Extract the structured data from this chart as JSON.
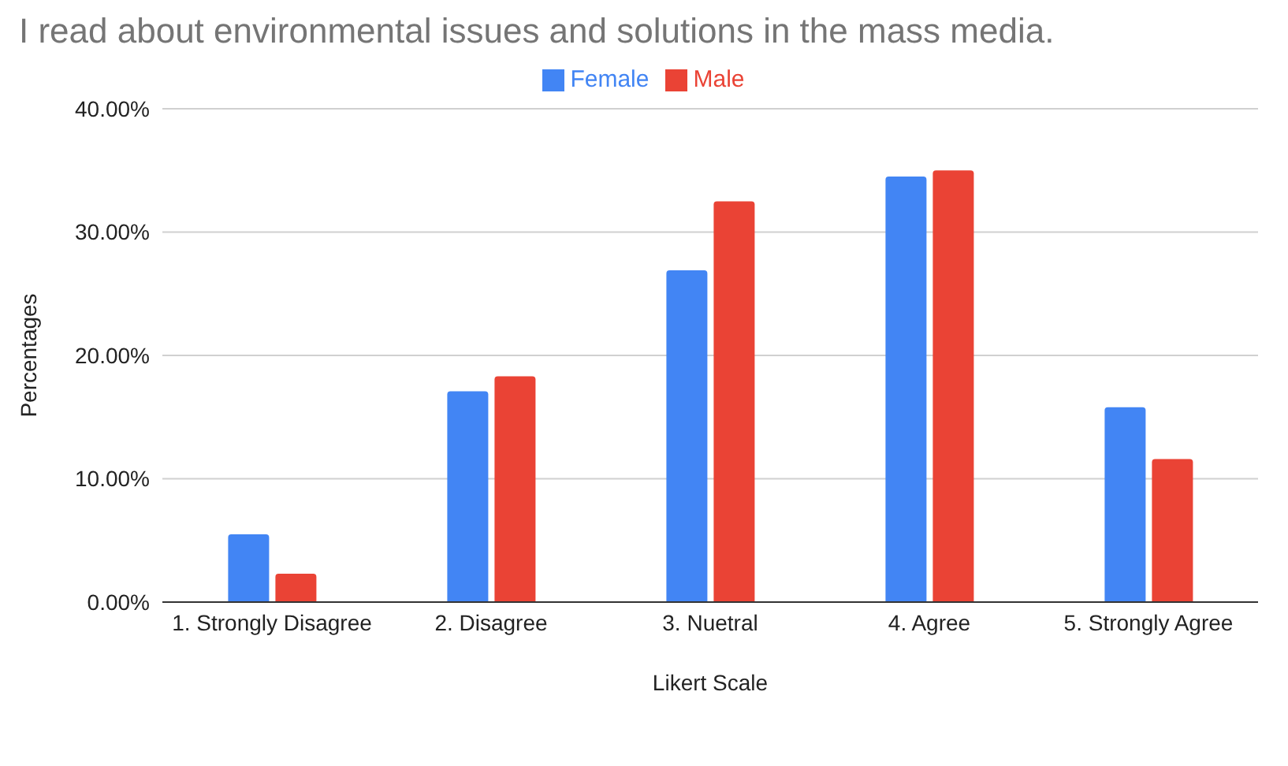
{
  "chart_data": {
    "type": "bar",
    "title": "I read about environmental issues and solutions in the mass media.",
    "xlabel": "Likert Scale",
    "ylabel": "Percentages",
    "categories": [
      "1. Strongly Disagree",
      "2. Disagree",
      "3. Nuetral",
      "4. Agree",
      "5. Strongly Agree"
    ],
    "series": [
      {
        "name": "Female",
        "color": "#4285f4",
        "values": [
          5.5,
          17.1,
          26.9,
          34.5,
          15.8
        ]
      },
      {
        "name": "Male",
        "color": "#ea4335",
        "values": [
          2.3,
          18.3,
          32.5,
          35.0,
          11.6
        ]
      }
    ],
    "ylim": [
      0,
      40
    ],
    "yticks": [
      {
        "value": 0,
        "label": "0.00%"
      },
      {
        "value": 10,
        "label": "10.00%"
      },
      {
        "value": 20,
        "label": "20.00%"
      },
      {
        "value": 30,
        "label": "30.00%"
      },
      {
        "value": 40,
        "label": "40.00%"
      }
    ],
    "grid": "y",
    "legend": "top"
  }
}
